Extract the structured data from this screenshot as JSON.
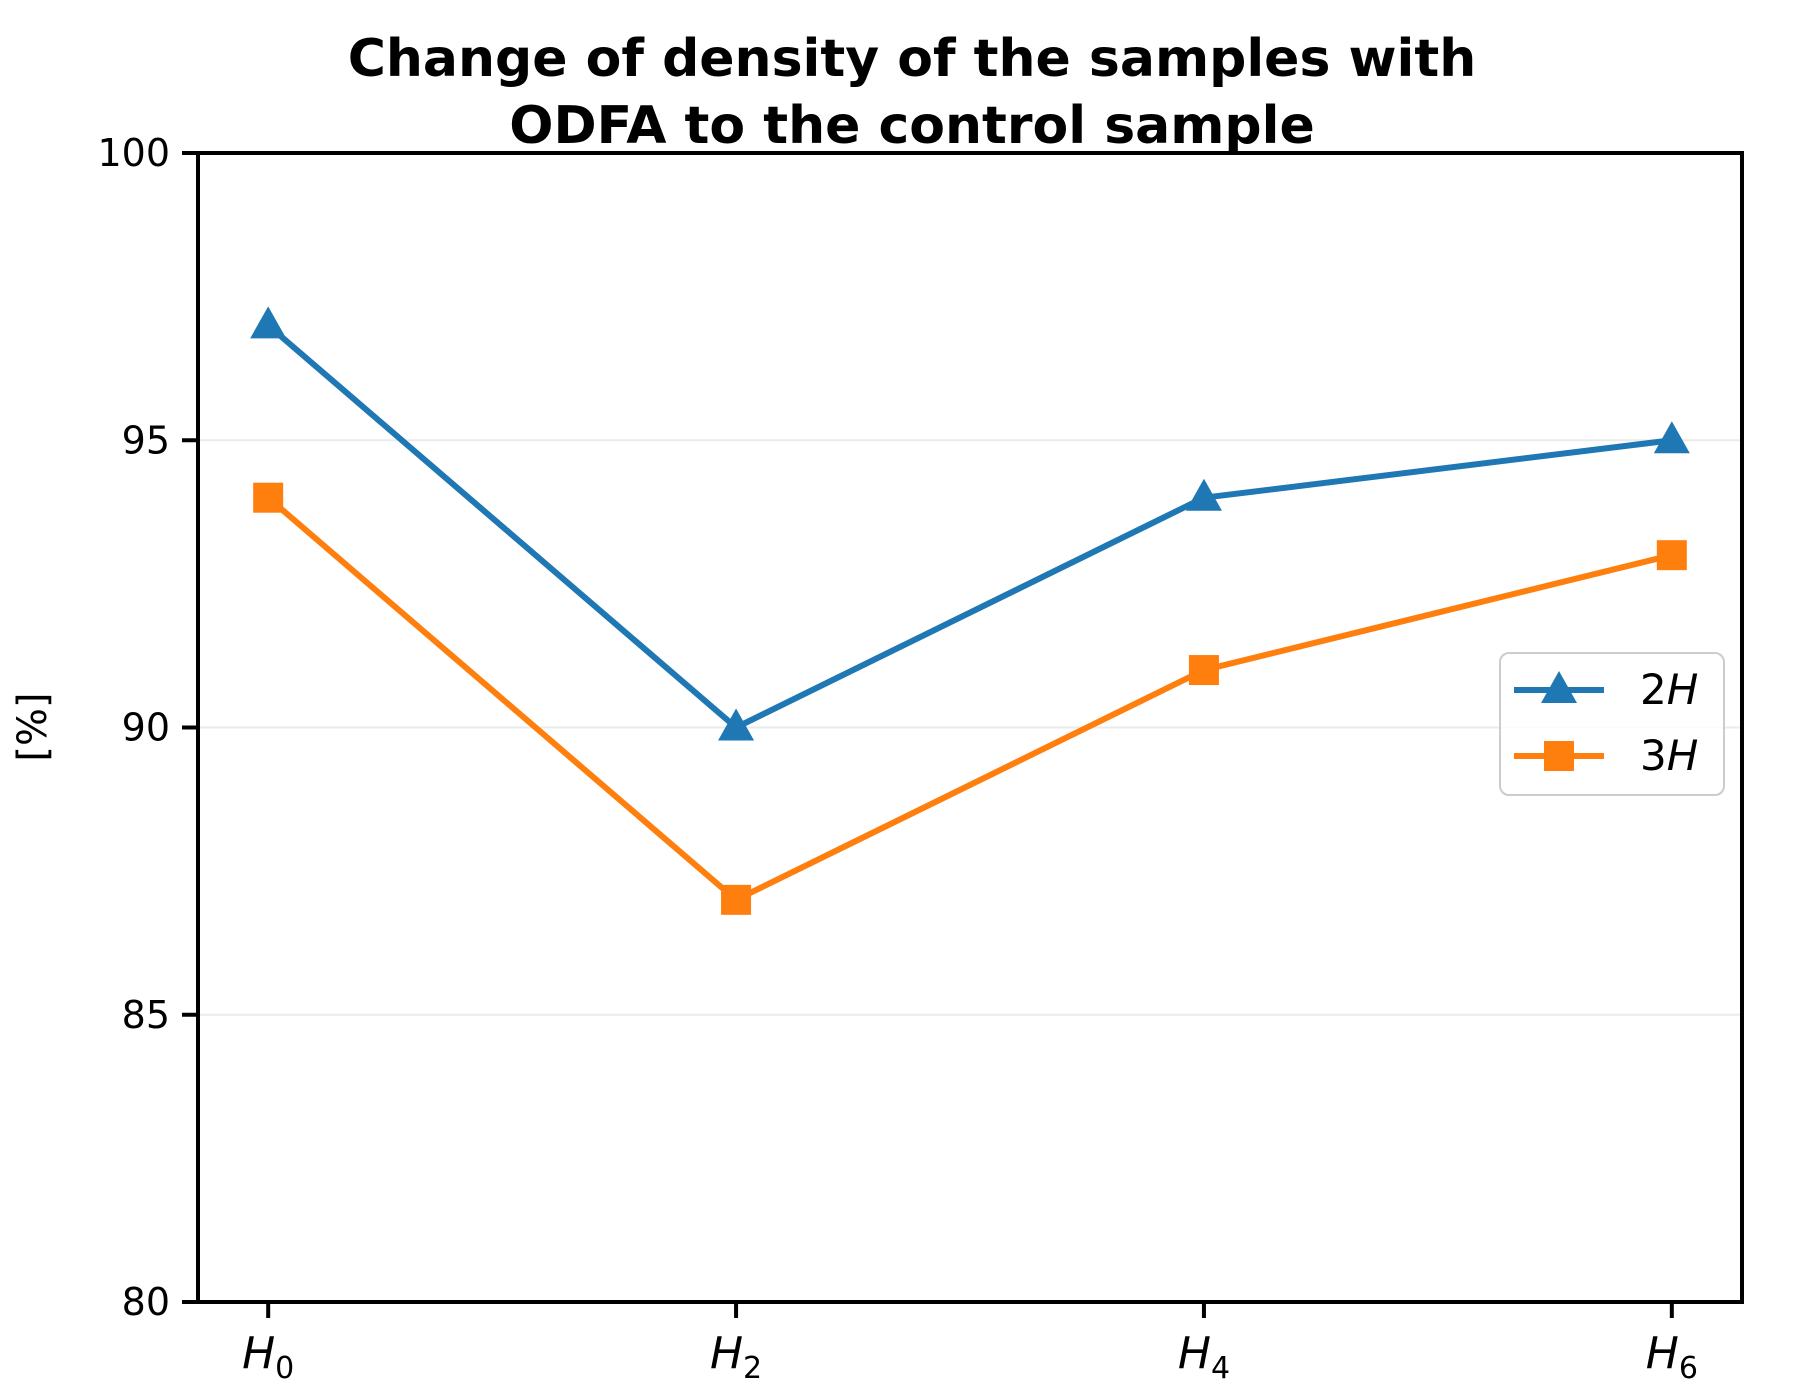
{
  "chart_data": {
    "type": "line",
    "title": "Change of density of the samples with\nODFA to the control sample",
    "xlabel": "",
    "ylabel": "[%]",
    "categories": [
      "H0",
      "H2",
      "H4",
      "H6"
    ],
    "x_tick_labels": [
      {
        "base": "H",
        "sub": "0"
      },
      {
        "base": "H",
        "sub": "2"
      },
      {
        "base": "H",
        "sub": "4"
      },
      {
        "base": "H",
        "sub": "6"
      }
    ],
    "series": [
      {
        "name": "2H",
        "label_prefix": "2",
        "label_italic": "H",
        "color": "#1f77b4",
        "marker": "triangle",
        "values": [
          97,
          90,
          94,
          95
        ]
      },
      {
        "name": "3H",
        "label_prefix": "3",
        "label_italic": "H",
        "color": "#ff7f0e",
        "marker": "square",
        "values": [
          94,
          87,
          91,
          93
        ]
      }
    ],
    "ylim": [
      80,
      100
    ],
    "y_ticks": [
      80,
      85,
      90,
      95,
      100
    ],
    "grid": {
      "axis": "y",
      "color": "#ebebeb"
    },
    "legend": {
      "frame": true,
      "location": "center right",
      "border_color": "#cccccc"
    },
    "axis_color": "#000000",
    "background_color": "#ffffff"
  }
}
